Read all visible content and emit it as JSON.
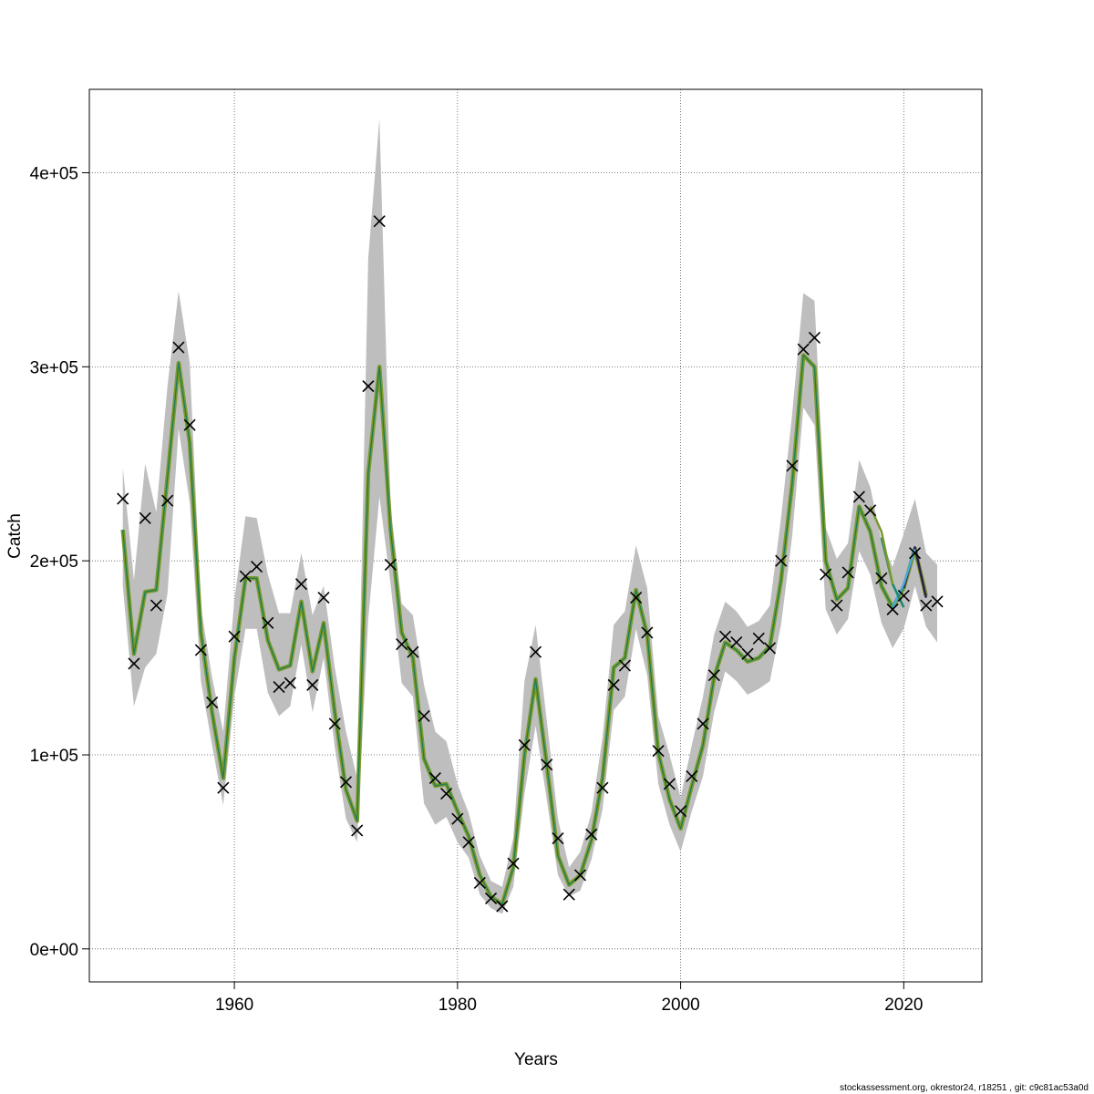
{
  "chart_data": {
    "type": "line",
    "xlabel": "Years",
    "ylabel": "Catch",
    "xlim": [
      1947,
      2027
    ],
    "ylim": [
      -17000,
      443000
    ],
    "x_ticks": [
      1960,
      1980,
      2000,
      2020
    ],
    "x_tick_labels": [
      "1960",
      "1980",
      "2000",
      "2020"
    ],
    "y_ticks": [
      0,
      100000,
      200000,
      300000,
      400000
    ],
    "y_tick_labels": [
      "0e+00",
      "1e+05",
      "2e+05",
      "3e+05",
      "4e+05"
    ],
    "grid": true,
    "x": [
      1950,
      1951,
      1952,
      1953,
      1954,
      1955,
      1956,
      1957,
      1958,
      1959,
      1960,
      1961,
      1962,
      1963,
      1964,
      1965,
      1966,
      1967,
      1968,
      1969,
      1970,
      1971,
      1972,
      1973,
      1974,
      1975,
      1976,
      1977,
      1978,
      1979,
      1980,
      1981,
      1982,
      1983,
      1984,
      1985,
      1986,
      1987,
      1988,
      1989,
      1990,
      1991,
      1992,
      1993,
      1994,
      1995,
      1996,
      1997,
      1998,
      1999,
      2000,
      2001,
      2002,
      2003,
      2004,
      2005,
      2006,
      2007,
      2008,
      2009,
      2010,
      2011,
      2012,
      2013,
      2014,
      2015,
      2016,
      2017,
      2018,
      2019,
      2020,
      2021,
      2022,
      2023
    ],
    "observed": [
      232000,
      147000,
      222000,
      177000,
      231000,
      310000,
      270000,
      154000,
      127000,
      83000,
      161000,
      192000,
      197000,
      168000,
      135000,
      137000,
      188000,
      136000,
      181000,
      116000,
      86000,
      61000,
      290000,
      375000,
      198000,
      157000,
      153000,
      120000,
      88000,
      80000,
      67000,
      55000,
      34000,
      26000,
      22000,
      44000,
      105000,
      153000,
      95000,
      57000,
      28000,
      38000,
      59000,
      83000,
      136000,
      146000,
      181000,
      163000,
      102000,
      85000,
      71000,
      89000,
      116000,
      141000,
      161000,
      158000,
      152000,
      160000,
      155000,
      200000,
      249000,
      309000,
      315000,
      193000,
      177000,
      194000,
      233000,
      226000,
      191000,
      175000,
      182000,
      204000,
      177000,
      179000
    ],
    "fitted": [
      216000,
      152000,
      184000,
      185000,
      243000,
      302000,
      261000,
      163000,
      122000,
      88000,
      150000,
      191000,
      191000,
      159000,
      144000,
      146000,
      179000,
      143000,
      168000,
      122000,
      82000,
      66000,
      245000,
      300000,
      216000,
      163000,
      150000,
      98000,
      84000,
      85000,
      71000,
      58000,
      38000,
      27000,
      23000,
      42000,
      100000,
      139000,
      95000,
      48000,
      33000,
      38000,
      56000,
      88000,
      145000,
      150000,
      185000,
      162000,
      101000,
      77000,
      62000,
      84000,
      105000,
      140000,
      158000,
      154000,
      148000,
      150000,
      156000,
      190000,
      240000,
      306000,
      300000,
      200000,
      180000,
      186000,
      228000,
      215000,
      187000,
      176000,
      186000,
      206000,
      182000,
      null
    ],
    "ci_upper": [
      248000,
      190000,
      250000,
      225000,
      290000,
      339000,
      302000,
      176000,
      140000,
      112000,
      180000,
      223000,
      222000,
      193000,
      173000,
      173000,
      204000,
      172000,
      187000,
      145000,
      112000,
      88000,
      356000,
      428000,
      228000,
      178000,
      172000,
      136000,
      112000,
      107000,
      85000,
      70000,
      48000,
      35000,
      32000,
      57000,
      138000,
      167000,
      118000,
      67000,
      42000,
      50000,
      70000,
      109000,
      167000,
      174000,
      208000,
      186000,
      120000,
      100000,
      78000,
      105000,
      130000,
      162000,
      179000,
      174000,
      166000,
      169000,
      177000,
      222000,
      276000,
      338000,
      334000,
      217000,
      201000,
      209000,
      252000,
      238000,
      210000,
      197000,
      214000,
      232000,
      204000,
      198000
    ],
    "ci_lower": [
      187000,
      125000,
      145000,
      152000,
      183000,
      268000,
      230000,
      138000,
      105000,
      74000,
      130000,
      165000,
      165000,
      132000,
      120000,
      125000,
      157000,
      122000,
      150000,
      104000,
      67000,
      55000,
      170000,
      233000,
      188000,
      137000,
      130000,
      75000,
      64000,
      68000,
      55000,
      47000,
      28000,
      21000,
      18000,
      32000,
      80000,
      115000,
      77000,
      38000,
      27000,
      30000,
      46000,
      72000,
      123000,
      130000,
      165000,
      141000,
      85000,
      64000,
      50000,
      71000,
      89000,
      122000,
      143000,
      138000,
      131000,
      134000,
      138000,
      167000,
      213000,
      279000,
      270000,
      175000,
      162000,
      170000,
      205000,
      193000,
      168000,
      155000,
      165000,
      187000,
      166000,
      158000
    ],
    "retro_series": [
      {
        "color": "#2e1e4f",
        "end_year": 2022,
        "tail": [
          186000,
          207000,
          181000
        ]
      },
      {
        "color": "#4aa8e0",
        "end_year": 2021,
        "tail": [
          176000,
          188000,
          206000
        ]
      },
      {
        "color": "#1a8a6a",
        "end_year": 2020,
        "tail": [
          212000,
          188000,
          176000
        ]
      },
      {
        "color": "#7a9a2a",
        "end_year": 2019,
        "tail": [
          228000,
          215000,
          188000
        ]
      }
    ],
    "colors": {
      "ci": "#bebebe",
      "observed": "#000000",
      "main_line": "#7a9a2a",
      "main_core": "#1a7a5a"
    }
  },
  "footer_text": "stockassessment.org, okrestor24, r18251 , git: c9c81ac53a0d"
}
